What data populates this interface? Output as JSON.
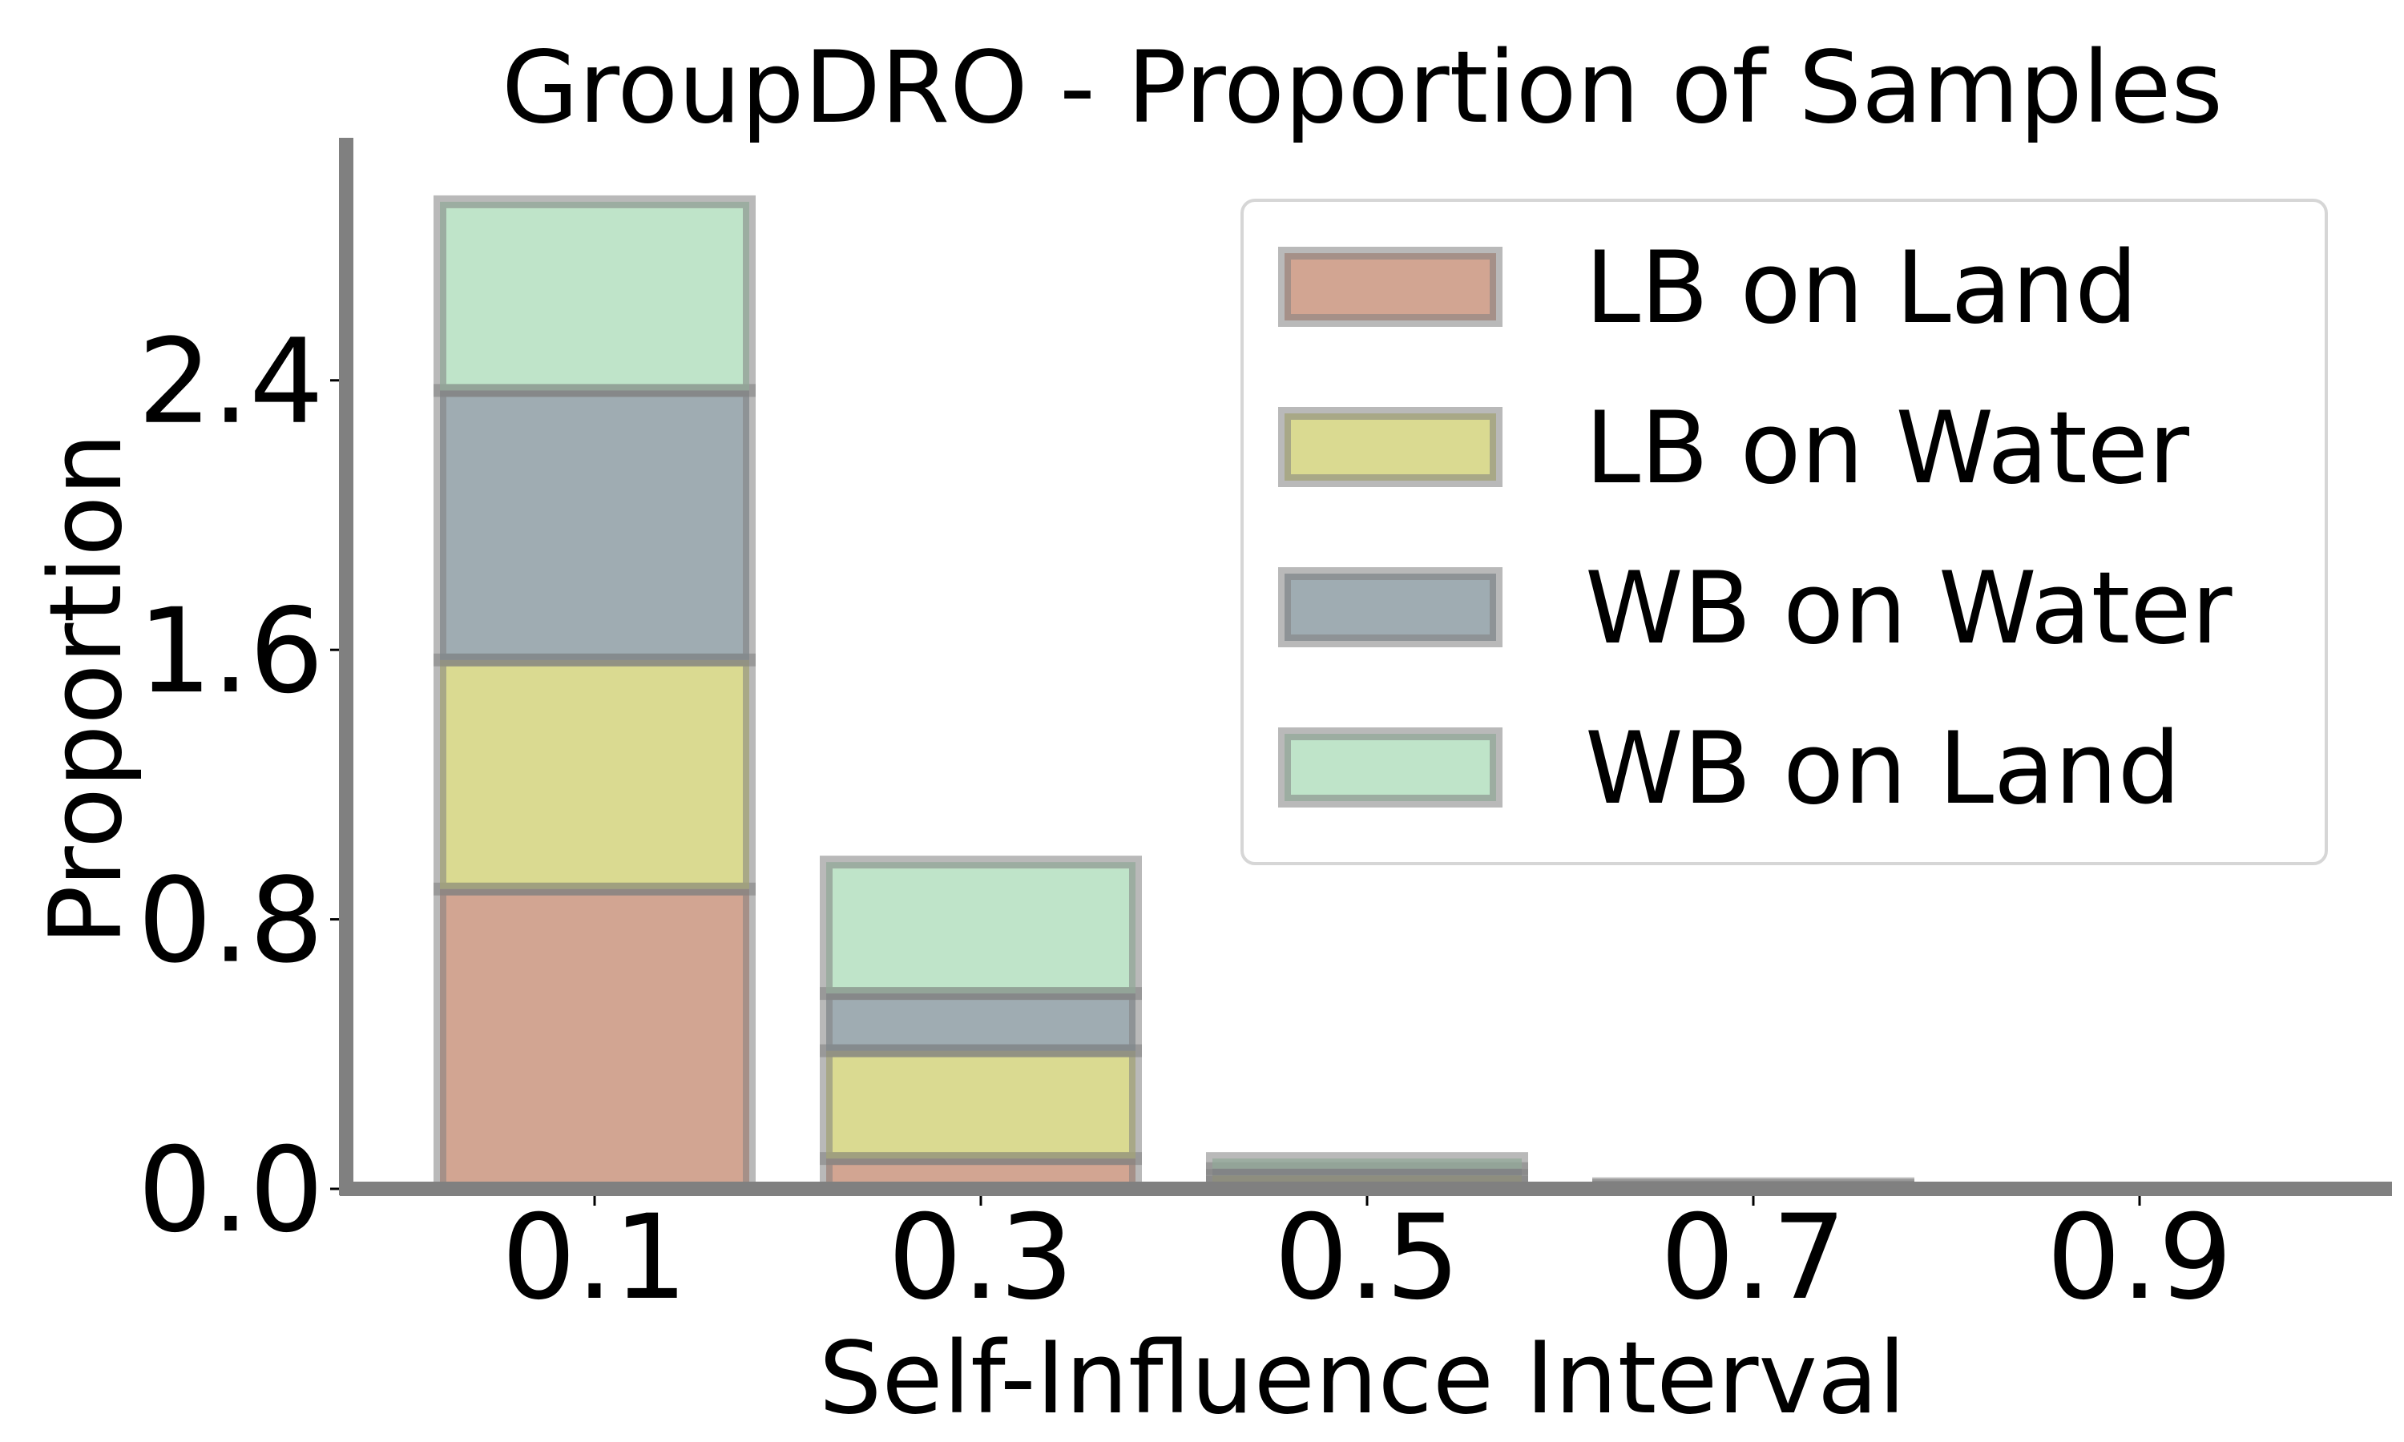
{
  "chart_data": {
    "type": "bar",
    "stacked": true,
    "title": "GroupDRO - Proportion of Samples",
    "xlabel": "Self-Influence Interval",
    "ylabel": "Proportion",
    "categories": [
      "0.1",
      "0.3",
      "0.5",
      "0.7",
      "0.9"
    ],
    "yticks": [
      "0.0",
      "0.8",
      "1.6",
      "2.4"
    ],
    "ylim": [
      0,
      3.12
    ],
    "legend_position": "upper right",
    "series": [
      {
        "name": "LB on Land",
        "color": "#c08268",
        "values": [
          0.89,
          0.09,
          0.02,
          0.0,
          0.0
        ]
      },
      {
        "name": "LB on Water",
        "color": "#cccc66",
        "values": [
          0.68,
          0.32,
          0.02,
          0.005,
          0.0
        ]
      },
      {
        "name": "WB on Water",
        "color": "#7a8c94",
        "values": [
          0.8,
          0.17,
          0.02,
          0.005,
          0.0
        ]
      },
      {
        "name": "WB on Land",
        "color": "#a6d9b4",
        "values": [
          0.56,
          0.39,
          0.03,
          0.005,
          0.0
        ]
      }
    ]
  }
}
